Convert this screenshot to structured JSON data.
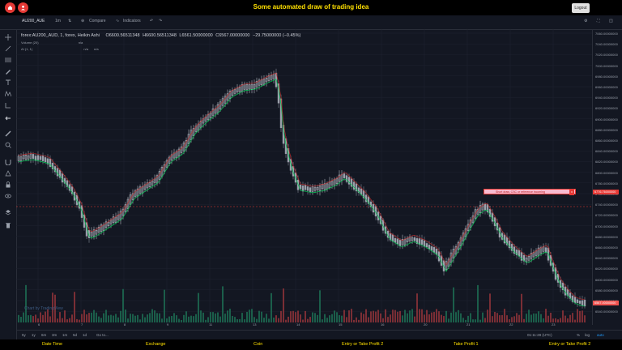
{
  "header": {
    "title": "Some automated draw of trading idea",
    "logout_label": "Logout"
  },
  "toolbar": {
    "symbol": "AU200_AUE",
    "interval": "1m",
    "compare": "Compare",
    "indicators": "Indicators"
  },
  "legend": {
    "series": "forex:AU200_AUD, 1, forex, Heikin Ashi",
    "o": "O6600.56511348",
    "h": "H6600.56511348",
    "l": "L6561.50000000",
    "c": "C6567.00000000",
    "change": "−29.75000000 (−0.45%)",
    "volume": "Volume (20)",
    "volume_val": "n/a",
    "ai": "AI (1, 1)",
    "ai_val1": "n/a",
    "ai_val2": "n/a"
  },
  "alert": {
    "text": "Short draw, CSC or reference incoming",
    "close": "x",
    "price": "6776.76000000"
  },
  "axis_labels": [
    "7060.00000000",
    "7040.00000000",
    "7020.00000000",
    "7000.00000000",
    "6980.00000000",
    "6960.00000000",
    "6940.00000000",
    "6920.00000000",
    "6900.00000000",
    "6880.00000000",
    "6860.00000000",
    "6840.00000000",
    "6820.00000000",
    "6800.00000000",
    "6780.00000000",
    "6760.00000000",
    "6740.00000000",
    "6720.00000000",
    "6700.00000000",
    "6680.00000000",
    "6660.00000000",
    "6640.00000000",
    "6620.00000000",
    "6600.00000000",
    "6580.00000000",
    "6560.00000000",
    "6540.00000000"
  ],
  "last_price": "6567.00000000",
  "x_ticks": [
    "6",
    "7",
    "8",
    "9",
    "11",
    "13",
    "14",
    "15",
    "16",
    "20",
    "21",
    "22",
    "23"
  ],
  "bottom": {
    "ranges": [
      "5y",
      "1y",
      "6m",
      "3m",
      "1m",
      "5d",
      "1d"
    ],
    "goto": "Go to...",
    "time": "01:11:28 (UTC)",
    "pct": "%",
    "log": "log",
    "auto": "auto"
  },
  "watermark": "Chart by TradingView",
  "footer": [
    "Date Time",
    "Exchange",
    "Coin",
    "Entry or Take Profit 2",
    "Take Profit 1",
    "Entry or Take Profit 2"
  ],
  "colors": {
    "up": "#26a69a",
    "down": "#ef5350",
    "accent": "#ffe000",
    "bg": "#131722"
  }
}
